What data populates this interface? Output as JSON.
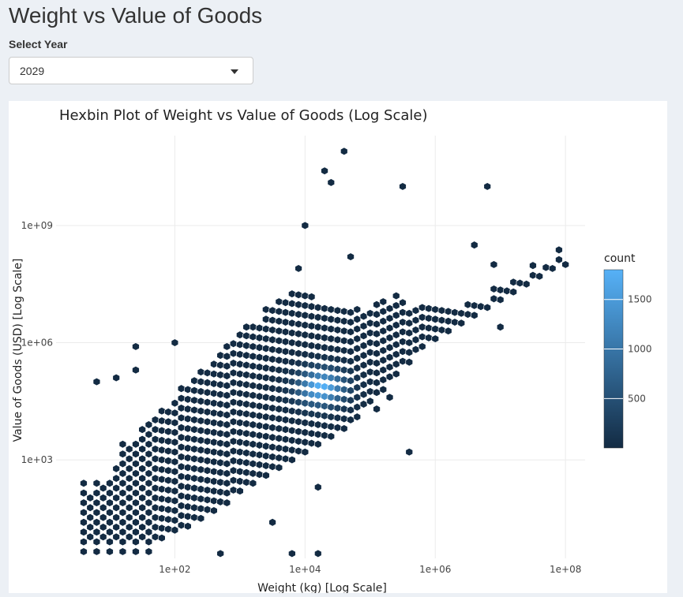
{
  "page": {
    "title": "Weight vs Value of Goods"
  },
  "year_select": {
    "label": "Select Year",
    "selected": "2029"
  },
  "colors": {
    "background": "#ecf0f5",
    "hex_low": "#132b43",
    "hex_high": "#56b1f7"
  },
  "chart_data": {
    "type": "heatmap",
    "subtype": "hexbin",
    "title": "Hexbin Plot of Weight vs Value of Goods (Log Scale)",
    "xlabel": "Weight (kg) [Log Scale]",
    "ylabel": "Value of Goods (USD) [Log Scale]",
    "x_scale": "log10",
    "y_scale": "log10",
    "xlim": [
      1.5,
      200000000
    ],
    "ylim": [
      3,
      200000000000
    ],
    "x_ticks": [
      {
        "value": 100,
        "label": "1e+02"
      },
      {
        "value": 10000,
        "label": "1e+04"
      },
      {
        "value": 1000000,
        "label": "1e+06"
      },
      {
        "value": 100000000,
        "label": "1e+08"
      }
    ],
    "y_ticks": [
      {
        "value": 1000,
        "label": "1e+03"
      },
      {
        "value": 1000000,
        "label": "1e+06"
      },
      {
        "value": 1000000000,
        "label": "1e+09"
      }
    ],
    "grid": true,
    "legend": {
      "title": "count",
      "position": "right",
      "min": 1,
      "max": 1800,
      "ticks": [
        500,
        1000,
        1500
      ]
    },
    "hex_columns_log10_x": [
      0.6,
      0.7,
      0.8,
      0.9,
      1.0,
      1.1,
      1.2,
      1.3,
      1.4,
      1.5,
      1.6,
      1.7,
      1.8,
      1.9,
      2.0,
      2.1,
      2.2,
      2.3,
      2.4,
      2.5,
      2.6,
      2.7,
      2.8,
      2.9,
      3.0,
      3.1,
      3.2,
      3.3,
      3.4,
      3.5,
      3.6,
      3.7,
      3.8,
      3.9,
      4.0,
      4.1,
      4.2,
      4.3,
      4.4,
      4.5,
      4.6,
      4.7,
      4.8,
      4.9,
      5.0,
      5.1,
      5.2,
      5.3,
      5.4,
      5.5,
      5.6,
      5.7,
      5.8,
      5.9,
      6.0,
      6.1,
      6.2,
      6.3,
      6.4,
      6.5,
      6.6,
      6.7,
      6.8,
      6.9,
      7.0,
      7.1,
      7.2,
      7.3,
      7.4,
      7.5,
      7.6,
      7.7,
      7.8,
      7.9,
      8.0
    ],
    "hex_column_log10_y_ranges": [
      [
        0.65,
        2.4
      ],
      [
        0.9,
        2.1
      ],
      [
        0.65,
        2.4
      ],
      [
        0.9,
        2.4
      ],
      [
        0.65,
        2.4
      ],
      [
        0.9,
        2.9
      ],
      [
        0.65,
        3.4
      ],
      [
        0.9,
        3.4
      ],
      [
        0.65,
        3.6
      ],
      [
        0.9,
        3.9
      ],
      [
        0.65,
        3.9
      ],
      [
        0.9,
        4.1
      ],
      [
        1.0,
        4.4
      ],
      [
        1.1,
        4.4
      ],
      [
        1.2,
        4.6
      ],
      [
        1.2,
        4.9
      ],
      [
        1.3,
        4.9
      ],
      [
        1.4,
        5.1
      ],
      [
        1.5,
        5.4
      ],
      [
        1.6,
        5.4
      ],
      [
        1.7,
        5.6
      ],
      [
        1.8,
        5.9
      ],
      [
        1.9,
        5.9
      ],
      [
        2.1,
        6.1
      ],
      [
        2.2,
        6.4
      ],
      [
        2.3,
        6.4
      ],
      [
        2.4,
        6.6
      ],
      [
        2.5,
        6.6
      ],
      [
        2.6,
        6.9
      ],
      [
        2.7,
        6.9
      ],
      [
        2.8,
        7.1
      ],
      [
        2.9,
        7.1
      ],
      [
        3.0,
        7.4
      ],
      [
        3.1,
        7.4
      ],
      [
        3.2,
        7.4
      ],
      [
        3.3,
        7.4
      ],
      [
        3.4,
        7.1
      ],
      [
        3.5,
        7.1
      ],
      [
        3.6,
        6.9
      ],
      [
        3.7,
        6.9
      ],
      [
        3.8,
        6.9
      ],
      [
        3.9,
        6.9
      ],
      [
        4.1,
        6.9
      ],
      [
        4.3,
        6.9
      ],
      [
        4.5,
        6.9
      ],
      [
        4.6,
        7.1
      ],
      [
        4.8,
        7.1
      ],
      [
        5.0,
        7.1
      ],
      [
        5.2,
        7.4
      ],
      [
        5.4,
        7.1
      ],
      [
        5.5,
        6.9
      ],
      [
        5.7,
        6.9
      ],
      [
        5.9,
        6.9
      ],
      [
        6.0,
        6.9
      ],
      [
        6.1,
        6.9
      ],
      [
        6.2,
        6.9
      ],
      [
        6.3,
        6.9
      ],
      [
        6.4,
        6.9
      ],
      [
        6.5,
        6.9
      ],
      [
        6.6,
        7.1
      ],
      [
        6.7,
        7.1
      ],
      [
        6.8,
        7.1
      ],
      [
        6.9,
        7.1
      ],
      [
        7.0,
        7.4
      ],
      [
        7.1,
        7.4
      ],
      [
        7.2,
        7.4
      ],
      [
        7.3,
        7.6
      ],
      [
        7.4,
        7.6
      ],
      [
        7.5,
        7.6
      ],
      [
        7.6,
        8.1
      ],
      [
        7.7,
        7.9
      ],
      [
        7.8,
        8.1
      ],
      [
        7.9,
        8.1
      ],
      [
        8.0,
        8.4
      ],
      [
        8.0,
        8.1
      ]
    ],
    "dense_peak_log10": {
      "x": 4.25,
      "y": 4.85,
      "count": 1800
    },
    "outlier_hexes_log10": [
      [
        4.6,
        10.9
      ],
      [
        4.3,
        10.4
      ],
      [
        4.4,
        10.1
      ],
      [
        5.5,
        10.0
      ],
      [
        4.0,
        9.0
      ],
      [
        6.8,
        10.0
      ],
      [
        6.6,
        8.5
      ],
      [
        4.7,
        8.2
      ],
      [
        3.9,
        7.9
      ],
      [
        6.9,
        8.0
      ],
      [
        7.0,
        6.4
      ],
      [
        3.1,
        6.4
      ],
      [
        2.0,
        6.0
      ],
      [
        1.4,
        5.3
      ],
      [
        1.4,
        5.9
      ],
      [
        0.8,
        5.0
      ],
      [
        1.1,
        5.1
      ],
      [
        5.6,
        3.2
      ],
      [
        5.3,
        4.6
      ],
      [
        5.1,
        4.3
      ],
      [
        4.2,
        2.3
      ],
      [
        4.2,
        0.6
      ],
      [
        3.8,
        0.6
      ],
      [
        2.7,
        0.6
      ],
      [
        3.5,
        1.4
      ]
    ]
  }
}
